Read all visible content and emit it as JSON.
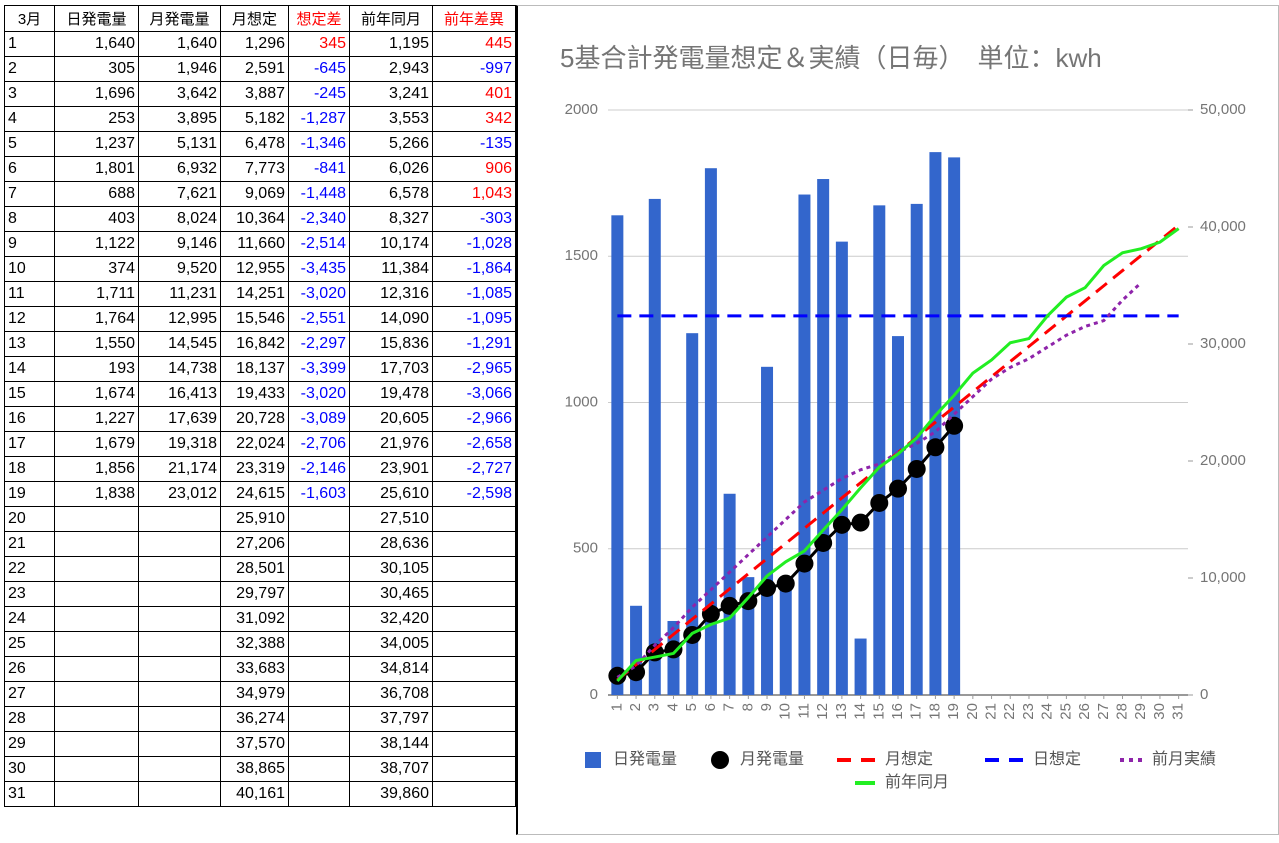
{
  "table": {
    "header": [
      "3月",
      "日発電量",
      "月発電量",
      "月想定",
      "想定差",
      "前年同月",
      "前年差異"
    ],
    "rows": [
      [
        "1",
        "1,640",
        "1,640",
        "1,296",
        "345",
        "1,195",
        "445"
      ],
      [
        "2",
        "305",
        "1,946",
        "2,591",
        "-645",
        "2,943",
        "-997"
      ],
      [
        "3",
        "1,696",
        "3,642",
        "3,887",
        "-245",
        "3,241",
        "401"
      ],
      [
        "4",
        "253",
        "3,895",
        "5,182",
        "-1,287",
        "3,553",
        "342"
      ],
      [
        "5",
        "1,237",
        "5,131",
        "6,478",
        "-1,346",
        "5,266",
        "-135"
      ],
      [
        "6",
        "1,801",
        "6,932",
        "7,773",
        "-841",
        "6,026",
        "906"
      ],
      [
        "7",
        "688",
        "7,621",
        "9,069",
        "-1,448",
        "6,578",
        "1,043"
      ],
      [
        "8",
        "403",
        "8,024",
        "10,364",
        "-2,340",
        "8,327",
        "-303"
      ],
      [
        "9",
        "1,122",
        "9,146",
        "11,660",
        "-2,514",
        "10,174",
        "-1,028"
      ],
      [
        "10",
        "374",
        "9,520",
        "12,955",
        "-3,435",
        "11,384",
        "-1,864"
      ],
      [
        "11",
        "1,711",
        "11,231",
        "14,251",
        "-3,020",
        "12,316",
        "-1,085"
      ],
      [
        "12",
        "1,764",
        "12,995",
        "15,546",
        "-2,551",
        "14,090",
        "-1,095"
      ],
      [
        "13",
        "1,550",
        "14,545",
        "16,842",
        "-2,297",
        "15,836",
        "-1,291"
      ],
      [
        "14",
        "193",
        "14,738",
        "18,137",
        "-3,399",
        "17,703",
        "-2,965"
      ],
      [
        "15",
        "1,674",
        "16,413",
        "19,433",
        "-3,020",
        "19,478",
        "-3,066"
      ],
      [
        "16",
        "1,227",
        "17,639",
        "20,728",
        "-3,089",
        "20,605",
        "-2,966"
      ],
      [
        "17",
        "1,679",
        "19,318",
        "22,024",
        "-2,706",
        "21,976",
        "-2,658"
      ],
      [
        "18",
        "1,856",
        "21,174",
        "23,319",
        "-2,146",
        "23,901",
        "-2,727"
      ],
      [
        "19",
        "1,838",
        "23,012",
        "24,615",
        "-1,603",
        "25,610",
        "-2,598"
      ],
      [
        "20",
        null,
        null,
        "25,910",
        null,
        "27,510",
        null
      ],
      [
        "21",
        null,
        null,
        "27,206",
        null,
        "28,636",
        null
      ],
      [
        "22",
        null,
        null,
        "28,501",
        null,
        "30,105",
        null
      ],
      [
        "23",
        null,
        null,
        "29,797",
        null,
        "30,465",
        null
      ],
      [
        "24",
        null,
        null,
        "31,092",
        null,
        "32,420",
        null
      ],
      [
        "25",
        null,
        null,
        "32,388",
        null,
        "34,005",
        null
      ],
      [
        "26",
        null,
        null,
        "33,683",
        null,
        "34,814",
        null
      ],
      [
        "27",
        null,
        null,
        "34,979",
        null,
        "36,708",
        null
      ],
      [
        "28",
        null,
        null,
        "36,274",
        null,
        "37,797",
        null
      ],
      [
        "29",
        null,
        null,
        "37,570",
        null,
        "38,144",
        null
      ],
      [
        "30",
        null,
        null,
        "38,865",
        null,
        "38,707",
        null
      ],
      [
        "31",
        null,
        null,
        "40,161",
        null,
        "39,860",
        null
      ]
    ],
    "positive_color": "#ff0000",
    "negative_color": "#0000ff"
  },
  "chart_data": {
    "type": "combo",
    "title": "5基合計発電量想定＆実績（日毎）　単位：kwh",
    "categories": [
      "1",
      "2",
      "3",
      "4",
      "5",
      "6",
      "7",
      "8",
      "9",
      "10",
      "11",
      "12",
      "13",
      "14",
      "15",
      "16",
      "17",
      "18",
      "19",
      "20",
      "21",
      "22",
      "23",
      "24",
      "25",
      "26",
      "27",
      "28",
      "29",
      "30",
      "31"
    ],
    "ylim": [
      0,
      2000
    ],
    "yticks": [
      0,
      500,
      1000,
      1500,
      2000
    ],
    "y2lim": [
      0,
      50000
    ],
    "y2ticks": [
      0,
      {
        "value": 10000,
        "label": "10,000"
      },
      {
        "value": 20000,
        "label": "20,000"
      },
      {
        "value": 30000,
        "label": "30,000"
      },
      {
        "value": 40000,
        "label": "40,000"
      },
      {
        "value": 50000,
        "label": "50,000"
      }
    ],
    "grid": true,
    "series": [
      {
        "name": "日発電量",
        "style": "bar",
        "color": "#3366cc",
        "values": [
          1640,
          305,
          1696,
          253,
          1237,
          1801,
          688,
          403,
          1122,
          374,
          1711,
          1764,
          1550,
          193,
          1674,
          1227,
          1679,
          1856,
          1838,
          null,
          null,
          null,
          null,
          null,
          null,
          null,
          null,
          null,
          null,
          null,
          null
        ]
      },
      {
        "name": "月発電量",
        "style": "solid",
        "marker": true,
        "color": "#000000",
        "axis": "y2",
        "values": [
          1640,
          1946,
          3642,
          3895,
          5131,
          6932,
          7621,
          8024,
          9146,
          9520,
          11231,
          12995,
          14545,
          14738,
          16413,
          17639,
          19318,
          21174,
          23012,
          null,
          null,
          null,
          null,
          null,
          null,
          null,
          null,
          null,
          null,
          null,
          null
        ]
      },
      {
        "name": "月想定",
        "style": "dashed",
        "color": "#ff0000",
        "axis": "y2",
        "values": [
          1296,
          2591,
          3887,
          5182,
          6478,
          7773,
          9069,
          10364,
          11660,
          12955,
          14251,
          15546,
          16842,
          18137,
          19433,
          20728,
          22024,
          23319,
          24615,
          25910,
          27206,
          28501,
          29797,
          31092,
          32388,
          33683,
          34979,
          36274,
          37570,
          38865,
          40161
        ]
      },
      {
        "name": "日想定",
        "style": "dashed",
        "color": "#0000ff",
        "values": [
          1296,
          1296,
          1296,
          1296,
          1296,
          1296,
          1296,
          1296,
          1296,
          1296,
          1296,
          1296,
          1296,
          1296,
          1296,
          1296,
          1296,
          1296,
          1296,
          1296,
          1296,
          1296,
          1296,
          1296,
          1296,
          1296,
          1296,
          1296,
          1296,
          1296,
          1296
        ]
      },
      {
        "name": "前月実績",
        "style": "dotted",
        "color": "#8e24aa",
        "axis": "y2",
        "values": [
          1500,
          2500,
          4250,
          5750,
          7500,
          9000,
          10500,
          12000,
          13500,
          15000,
          16500,
          17500,
          18500,
          19250,
          19750,
          20750,
          21500,
          22500,
          24000,
          25500,
          27000,
          28000,
          28750,
          29750,
          30750,
          31500,
          32000,
          33750,
          35250,
          null,
          null
        ]
      },
      {
        "name": "前年同月",
        "style": "solid",
        "color": "#22ee22",
        "axis": "y2",
        "values": [
          1195,
          2943,
          3241,
          3553,
          5266,
          6026,
          6578,
          8327,
          10174,
          11384,
          12316,
          14090,
          15836,
          17703,
          19478,
          20605,
          21976,
          23901,
          25610,
          27510,
          28636,
          30105,
          30465,
          32420,
          34005,
          34814,
          36708,
          37797,
          38144,
          38707,
          39860
        ]
      }
    ]
  }
}
